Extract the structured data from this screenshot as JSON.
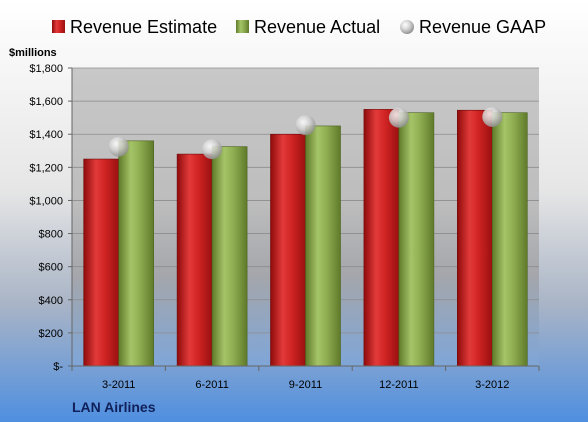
{
  "chart_data": {
    "type": "bar",
    "title": "",
    "xlabel": "",
    "ylabel": "",
    "unit_label": "$millions",
    "company": "LAN Airlines",
    "categories": [
      "3-2011",
      "6-2011",
      "9-2011",
      "12-2011",
      "3-2012"
    ],
    "ylim": [
      0,
      1800
    ],
    "yticks": [
      0,
      200,
      400,
      600,
      800,
      1000,
      1200,
      1400,
      1600,
      1800
    ],
    "ytick_labels": [
      "$-",
      "$200",
      "$400",
      "$600",
      "$800",
      "$1,000",
      "$1,200",
      "$1,400",
      "$1,600",
      "$1,800"
    ],
    "grid": true,
    "legend": "top",
    "series": [
      {
        "name": "Revenue Estimate",
        "kind": "bar",
        "color": "#cc1e1e",
        "values": [
          1250,
          1280,
          1400,
          1550,
          1545
        ]
      },
      {
        "name": "Revenue Actual",
        "kind": "bar",
        "color": "#88a84a",
        "values": [
          1360,
          1325,
          1450,
          1530,
          1530
        ]
      },
      {
        "name": "Revenue GAAP",
        "kind": "marker",
        "color": "#c0c0c0",
        "values": [
          1325,
          1310,
          1455,
          1500,
          1505
        ]
      }
    ]
  }
}
